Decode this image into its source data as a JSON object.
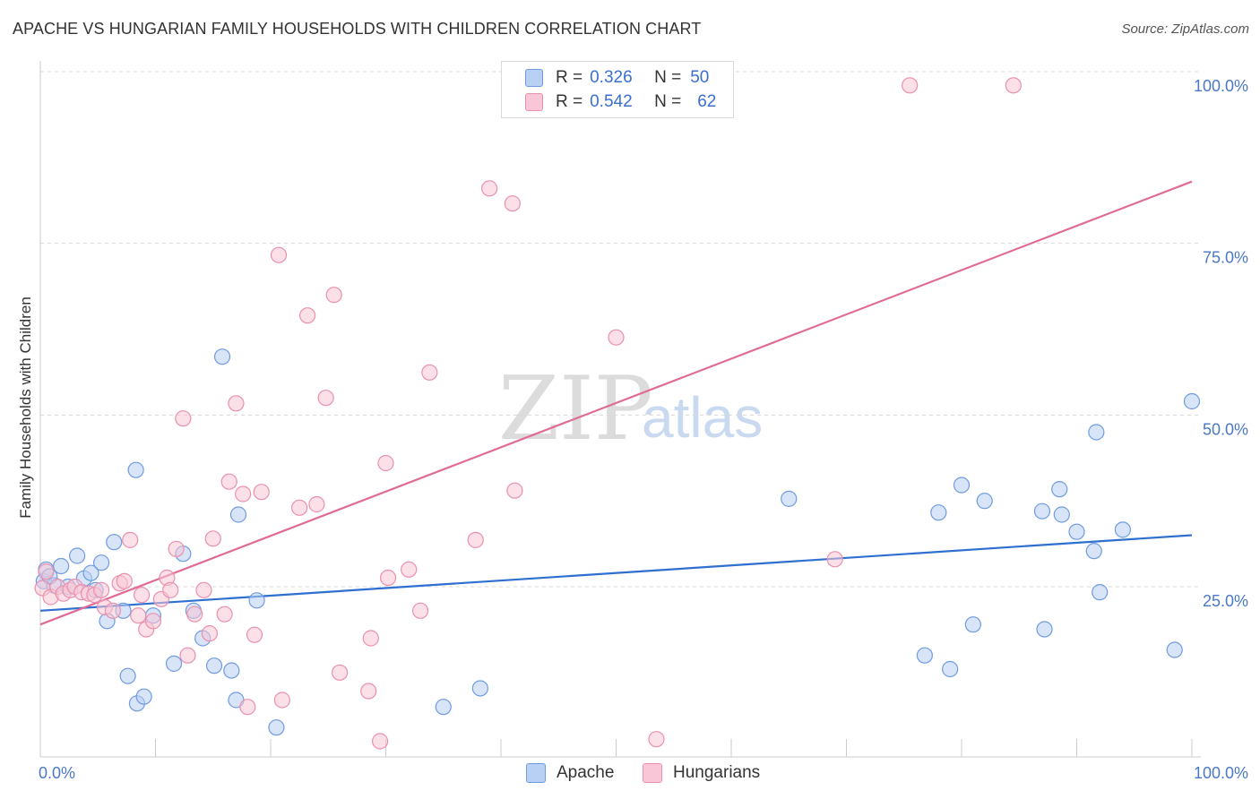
{
  "header": {
    "title": "APACHE VS HUNGARIAN FAMILY HOUSEHOLDS WITH CHILDREN CORRELATION CHART",
    "source": "Source: ZipAtlas.com"
  },
  "legend": {
    "rows": [
      {
        "r_label": "R =",
        "r_value": "0.326",
        "n_label": "N =",
        "n_value": "50"
      },
      {
        "r_label": "R =",
        "r_value": "0.542",
        "n_label": "N =",
        "n_value": "62"
      }
    ]
  },
  "bottom_legend": [
    "Apache",
    "Hungarians"
  ],
  "watermark": {
    "zip": "ZIP",
    "atlas": "atlas"
  },
  "colors": {
    "apache_fill": "#b8d0f3",
    "apache_stroke": "#6f9be0",
    "apache_line": "#2f6fcf",
    "hung_fill": "#f8c6d6",
    "hung_stroke": "#e990ae",
    "hung_line": "#e06b94",
    "grid": "#d8d8d8",
    "tick_text": "#4a78c8"
  },
  "chart_data": {
    "type": "scatter",
    "title": "APACHE VS HUNGARIAN FAMILY HOUSEHOLDS WITH CHILDREN CORRELATION CHART",
    "xlabel": "",
    "ylabel": "Family Households with Children",
    "xlim": [
      0,
      100
    ],
    "ylim": [
      0,
      100
    ],
    "x_tick_labels": [
      "0.0%",
      "100.0%"
    ],
    "y_ticks": [
      25,
      50,
      75,
      100
    ],
    "y_tick_labels": [
      "25.0%",
      "50.0%",
      "75.0%",
      "100.0%"
    ],
    "grid": true,
    "series": [
      {
        "name": "Apache",
        "R": 0.326,
        "N": 50,
        "trend": [
          [
            0,
            21.5
          ],
          [
            100,
            32.5
          ]
        ],
        "points": [
          [
            0.3,
            25.8
          ],
          [
            0.5,
            27.5
          ],
          [
            1.2,
            25.2
          ],
          [
            1.8,
            28.0
          ],
          [
            2.4,
            25.0
          ],
          [
            3.2,
            29.5
          ],
          [
            3.8,
            26.2
          ],
          [
            4.4,
            27.0
          ],
          [
            4.8,
            24.5
          ],
          [
            5.3,
            28.5
          ],
          [
            5.8,
            20.0
          ],
          [
            6.4,
            31.5
          ],
          [
            7.2,
            21.5
          ],
          [
            7.6,
            12.0
          ],
          [
            8.4,
            8.0
          ],
          [
            9.0,
            9.0
          ],
          [
            8.3,
            42.0
          ],
          [
            9.8,
            20.8
          ],
          [
            11.6,
            13.8
          ],
          [
            12.4,
            29.8
          ],
          [
            13.3,
            21.5
          ],
          [
            14.1,
            17.5
          ],
          [
            15.1,
            13.5
          ],
          [
            15.8,
            58.5
          ],
          [
            16.6,
            12.8
          ],
          [
            17.0,
            8.5
          ],
          [
            17.2,
            35.5
          ],
          [
            18.8,
            23.0
          ],
          [
            20.5,
            4.5
          ],
          [
            35.0,
            7.5
          ],
          [
            38.2,
            10.2
          ],
          [
            65.0,
            37.8
          ],
          [
            76.8,
            15.0
          ],
          [
            78.0,
            35.8
          ],
          [
            79.0,
            13.0
          ],
          [
            80.0,
            39.8
          ],
          [
            81.0,
            19.5
          ],
          [
            82.0,
            37.5
          ],
          [
            87.0,
            36.0
          ],
          [
            87.2,
            18.8
          ],
          [
            88.5,
            39.2
          ],
          [
            88.7,
            35.5
          ],
          [
            90.0,
            33.0
          ],
          [
            91.5,
            30.2
          ],
          [
            91.7,
            47.5
          ],
          [
            92.0,
            24.2
          ],
          [
            94.0,
            33.3
          ],
          [
            98.5,
            15.8
          ],
          [
            100.0,
            52.0
          ],
          [
            0.8,
            26.5
          ]
        ]
      },
      {
        "name": "Hungarians",
        "R": 0.542,
        "N": 62,
        "trend": [
          [
            0,
            19.5
          ],
          [
            100,
            84.0
          ]
        ],
        "points": [
          [
            0.2,
            24.8
          ],
          [
            0.5,
            27.2
          ],
          [
            0.9,
            23.5
          ],
          [
            1.5,
            25.0
          ],
          [
            2.0,
            24.0
          ],
          [
            2.6,
            24.5
          ],
          [
            3.0,
            25.0
          ],
          [
            3.6,
            24.2
          ],
          [
            4.2,
            24.0
          ],
          [
            4.7,
            23.8
          ],
          [
            5.3,
            24.5
          ],
          [
            5.6,
            22.0
          ],
          [
            6.3,
            21.5
          ],
          [
            6.9,
            25.5
          ],
          [
            7.3,
            25.8
          ],
          [
            7.8,
            31.8
          ],
          [
            8.5,
            20.8
          ],
          [
            8.8,
            23.8
          ],
          [
            9.2,
            18.8
          ],
          [
            9.8,
            20.0
          ],
          [
            10.5,
            23.2
          ],
          [
            11.0,
            26.3
          ],
          [
            11.3,
            24.5
          ],
          [
            11.8,
            30.5
          ],
          [
            12.4,
            49.5
          ],
          [
            12.8,
            15.0
          ],
          [
            13.4,
            21.0
          ],
          [
            14.2,
            24.5
          ],
          [
            14.7,
            18.2
          ],
          [
            15.0,
            32.0
          ],
          [
            16.0,
            21.0
          ],
          [
            16.4,
            40.3
          ],
          [
            17.0,
            51.7
          ],
          [
            17.6,
            38.5
          ],
          [
            18.0,
            7.5
          ],
          [
            18.6,
            18.0
          ],
          [
            19.2,
            38.8
          ],
          [
            20.7,
            73.3
          ],
          [
            21.0,
            8.5
          ],
          [
            22.5,
            36.5
          ],
          [
            23.2,
            64.5
          ],
          [
            24.0,
            37.0
          ],
          [
            24.8,
            52.5
          ],
          [
            25.5,
            67.5
          ],
          [
            26.0,
            12.5
          ],
          [
            28.5,
            9.8
          ],
          [
            28.7,
            17.5
          ],
          [
            29.5,
            2.5
          ],
          [
            30.0,
            43.0
          ],
          [
            30.2,
            26.3
          ],
          [
            32.0,
            27.5
          ],
          [
            33.0,
            21.5
          ],
          [
            33.8,
            56.2
          ],
          [
            37.8,
            31.8
          ],
          [
            39.0,
            83.0
          ],
          [
            41.0,
            80.8
          ],
          [
            41.2,
            39.0
          ],
          [
            50.0,
            61.3
          ],
          [
            53.5,
            2.8
          ],
          [
            69.0,
            29.0
          ],
          [
            75.5,
            98.0
          ],
          [
            84.5,
            98.0
          ]
        ]
      }
    ]
  }
}
